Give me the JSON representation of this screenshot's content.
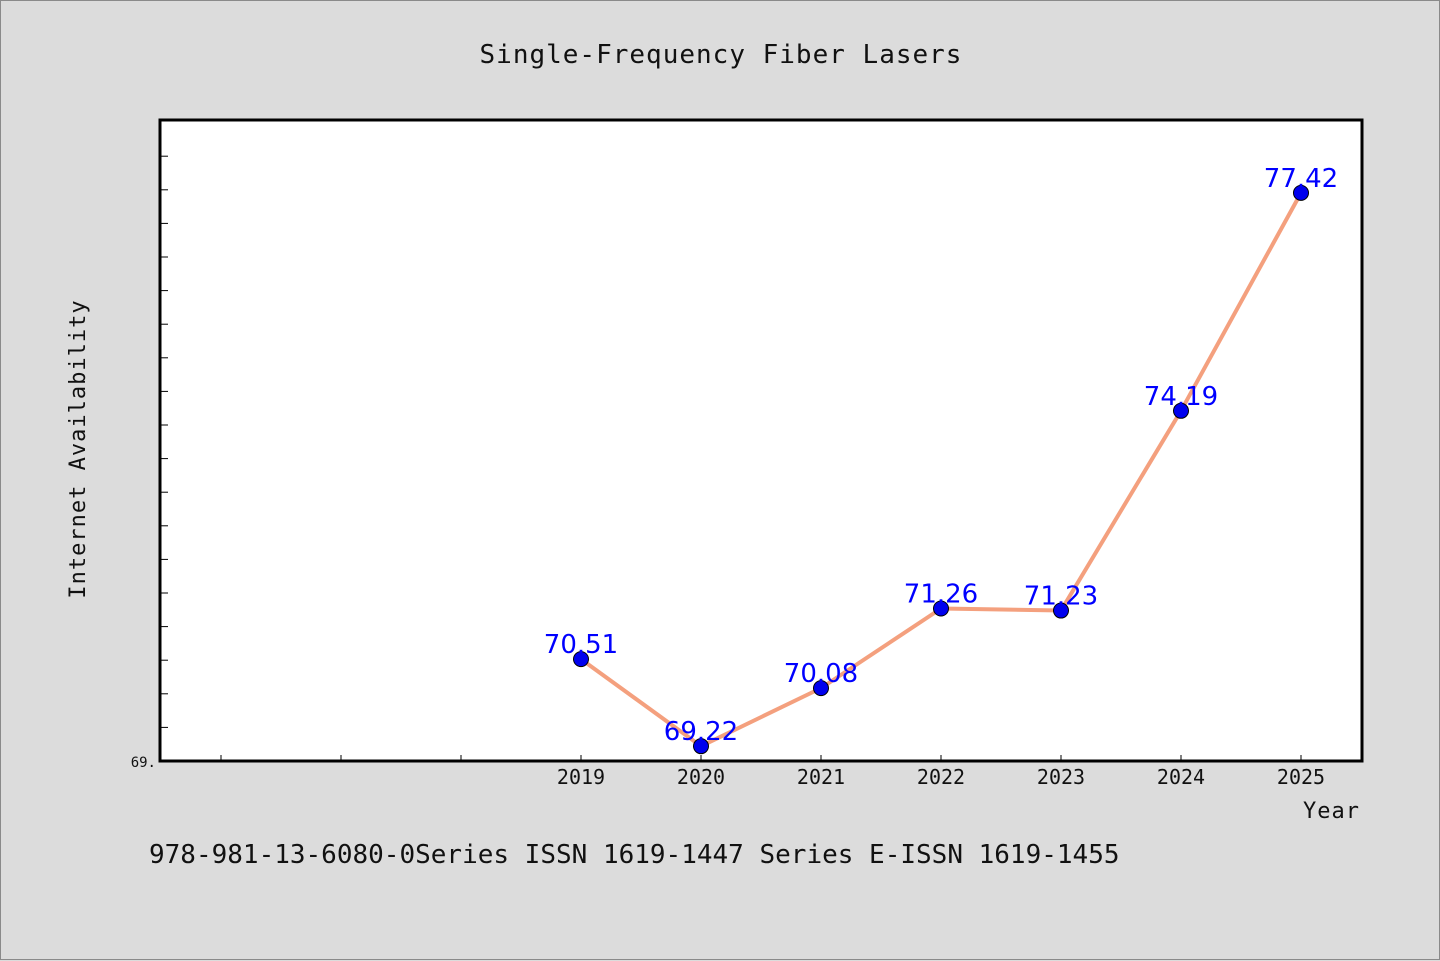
{
  "chart_data": {
    "type": "line",
    "title": "Single-Frequency Fiber Lasers",
    "xlabel": "Year",
    "ylabel": "Internet Availability",
    "x": [
      "2019",
      "2020",
      "2021",
      "2022",
      "2023",
      "2024",
      "2025"
    ],
    "series": [
      {
        "values": [
          70.51,
          69.22,
          70.08,
          71.26,
          71.23,
          74.19,
          77.42
        ],
        "labels": [
          "70.51",
          "69.22",
          "70.08",
          "71.26",
          "71.23",
          "74.19",
          "77.42"
        ],
        "line_color": "#f4a07e",
        "marker_color": "#0000ee"
      }
    ],
    "ylim": [
      69.0,
      78.5
    ],
    "y_tick_labels": [
      "69."
    ],
    "grid": false,
    "legend": "none"
  },
  "footer": {
    "text": "978-981-13-6080-0Series ISSN 1619-1447 Series E-ISSN 1619-1455"
  },
  "colors": {
    "background": "#dcdcdc",
    "plot_background": "#ffffff",
    "label_color": "#0000ff"
  }
}
